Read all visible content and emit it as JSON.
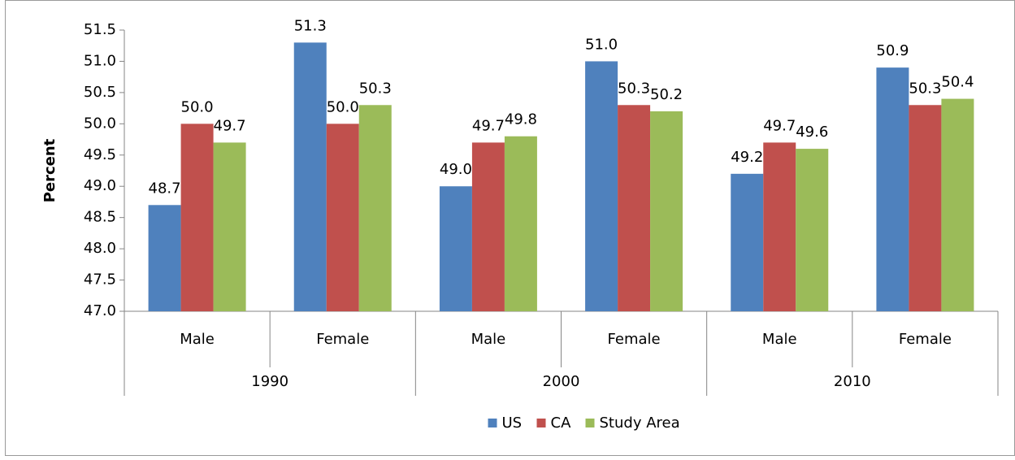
{
  "chart_data": {
    "type": "bar",
    "y_label": "Percent",
    "categories": [
      "Male",
      "Female",
      "Male",
      "Female",
      "Male",
      "Female"
    ],
    "category_groups": [
      "1990",
      "2000",
      "2010"
    ],
    "series": [
      {
        "name": "US",
        "color": "#4f81bd",
        "values": [
          48.7,
          51.3,
          49.0,
          51.0,
          49.2,
          50.9
        ],
        "value_labels": [
          "48.7",
          "51.3",
          "49.0",
          "51.0",
          "49.2",
          "50.9"
        ]
      },
      {
        "name": "CA",
        "color": "#c0504d",
        "values": [
          50.0,
          50.0,
          49.7,
          50.3,
          49.7,
          50.3
        ],
        "value_labels": [
          "50.0",
          "50.0",
          "49.7",
          "50.3",
          "49.7",
          "50.3"
        ]
      },
      {
        "name": "Study Area",
        "color": "#9bbb59",
        "values": [
          49.7,
          50.3,
          49.8,
          50.2,
          49.6,
          50.4
        ],
        "value_labels": [
          "49.7",
          "50.3",
          "49.8",
          "50.2",
          "49.6",
          "50.4"
        ]
      }
    ],
    "ylim": [
      47,
      51.5
    ],
    "yticks": [
      {
        "value": 47,
        "label": "47.0"
      },
      {
        "value": 47.5,
        "label": "47.5"
      },
      {
        "value": 48,
        "label": "48.0"
      },
      {
        "value": 48.5,
        "label": "48.5"
      },
      {
        "value": 49,
        "label": "49.0"
      },
      {
        "value": 49.5,
        "label": "49.5"
      },
      {
        "value": 50,
        "label": "50.0"
      },
      {
        "value": 50.5,
        "label": "50.5"
      },
      {
        "value": 51,
        "label": "51.0"
      },
      {
        "value": 51.5,
        "label": "51.5"
      }
    ],
    "legend": "bottom"
  }
}
